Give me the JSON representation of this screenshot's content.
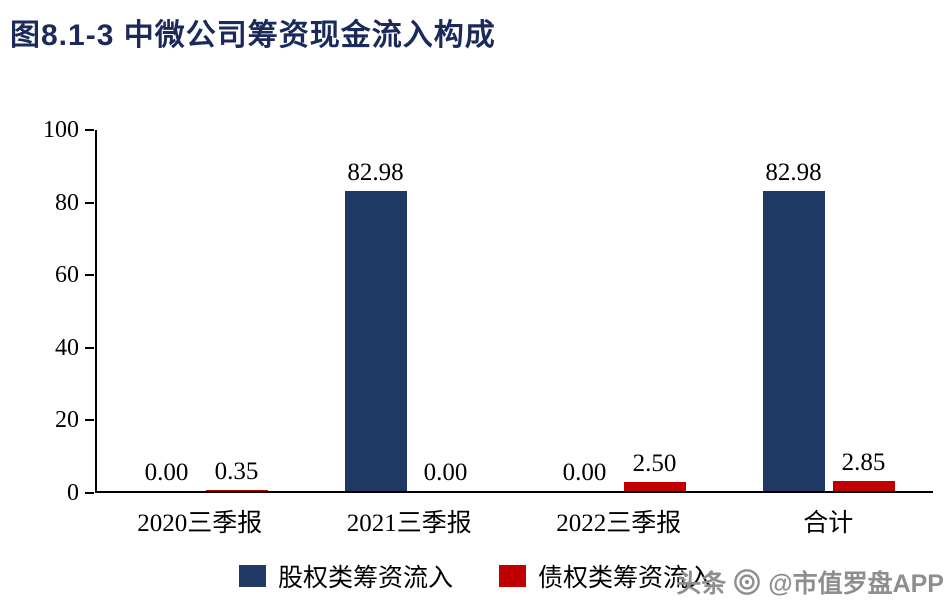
{
  "title": "图8.1-3 中微公司筹资现金流入构成",
  "chart_data": {
    "type": "bar",
    "title": "图8.1-3 中微公司筹资现金流入构成",
    "categories": [
      "2020三季报",
      "2021三季报",
      "2022三季报",
      "合计"
    ],
    "series": [
      {
        "name": "股权类筹资流入",
        "color": "#1F3864",
        "values": [
          0,
          82.98,
          0,
          82.98
        ],
        "labels": [
          "0.00",
          "82.98",
          "0.00",
          "82.98"
        ]
      },
      {
        "name": "债权类筹资流入",
        "color": "#C00000",
        "values": [
          0.35,
          0,
          2.5,
          2.85
        ],
        "labels": [
          "0.35",
          "0.00",
          "2.50",
          "2.85"
        ]
      }
    ],
    "xlabel": "",
    "ylabel": "",
    "ylim": [
      0,
      100
    ],
    "yticks": [
      0,
      20,
      40,
      60,
      80,
      100
    ],
    "grid": false,
    "legend_position": "bottom"
  },
  "watermark": {
    "prefix": "头条",
    "handle": "@市值罗盘APP"
  },
  "colors": {
    "title": "#1b2a5b",
    "axis": "#000000",
    "watermark": "#8e8e8e"
  }
}
